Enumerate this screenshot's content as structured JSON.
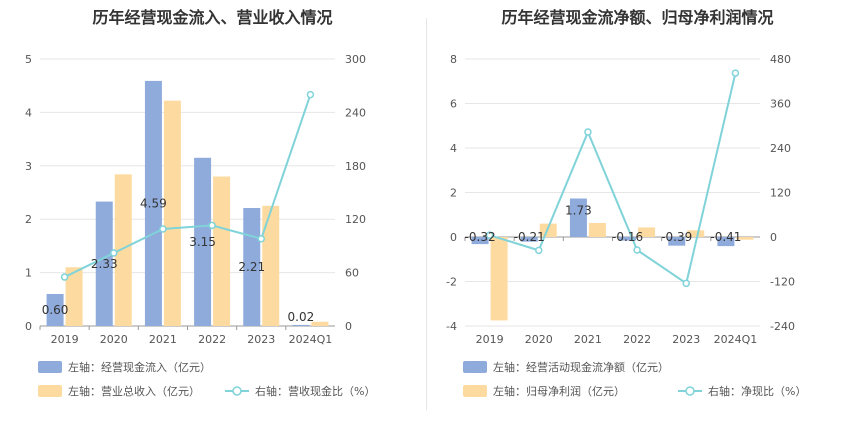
{
  "chart_data": [
    {
      "type": "bar",
      "title": "历年经营现金流入、营业收入情况",
      "categories": [
        "2019",
        "2020",
        "2021",
        "2022",
        "2023",
        "2024Q1"
      ],
      "series": [
        {
          "name": "左轴：经营现金流入（亿元）",
          "axis": "left",
          "type": "bar",
          "values": [
            0.6,
            2.33,
            4.59,
            3.15,
            2.21,
            0.02
          ],
          "data_labels": [
            "0.60",
            "2.33",
            "4.59",
            "3.15",
            "2.21",
            "0.02"
          ]
        },
        {
          "name": "左轴：营业总收入（亿元）",
          "axis": "left",
          "type": "bar",
          "values": [
            1.1,
            2.84,
            4.22,
            2.8,
            2.25,
            0.08
          ]
        },
        {
          "name": "右轴：营收现金比（%）",
          "axis": "right",
          "type": "line",
          "values": [
            55,
            82,
            109,
            113,
            98,
            260
          ]
        }
      ],
      "ylim_left": [
        0,
        5
      ],
      "yticks_left": [
        "0",
        "1",
        "2",
        "3",
        "4",
        "5"
      ],
      "ylim_right": [
        0,
        300
      ],
      "yticks_right": [
        "0",
        "60",
        "120",
        "180",
        "240",
        "300"
      ],
      "colors": {
        "bar1": "#8fabdc",
        "bar2": "#fddba0",
        "line": "#7fd3d9"
      },
      "legend_position": "bottom"
    },
    {
      "type": "bar",
      "title": "历年经营现金流净额、归母净利润情况",
      "categories": [
        "2019",
        "2020",
        "2021",
        "2022",
        "2023",
        "2024Q1"
      ],
      "series": [
        {
          "name": "左轴：经营活动现金流净额（亿元）",
          "axis": "left",
          "type": "bar",
          "values": [
            -0.32,
            -0.21,
            1.73,
            -0.16,
            -0.39,
            -0.41
          ],
          "data_labels": [
            "-0.32",
            "-0.21",
            "1.73",
            "-0.16",
            "-0.39",
            "-0.41"
          ]
        },
        {
          "name": "左轴：归母净利润（亿元）",
          "axis": "left",
          "type": "bar",
          "values": [
            -3.75,
            0.6,
            0.63,
            0.43,
            0.3,
            -0.12
          ]
        },
        {
          "name": "右轴：净现比（%）",
          "axis": "right",
          "type": "line",
          "values": [
            5,
            -36,
            283,
            -35,
            -125,
            442
          ]
        }
      ],
      "ylim_left": [
        -4,
        8
      ],
      "yticks_left": [
        "-4",
        "-2",
        "0",
        "2",
        "4",
        "6",
        "8"
      ],
      "ylim_right": [
        -240,
        480
      ],
      "yticks_right": [
        "-240",
        "-120",
        "0",
        "120",
        "240",
        "360",
        "480"
      ],
      "colors": {
        "bar1": "#8fabdc",
        "bar2": "#fddba0",
        "line": "#7fd3d9"
      },
      "legend_position": "bottom"
    }
  ]
}
